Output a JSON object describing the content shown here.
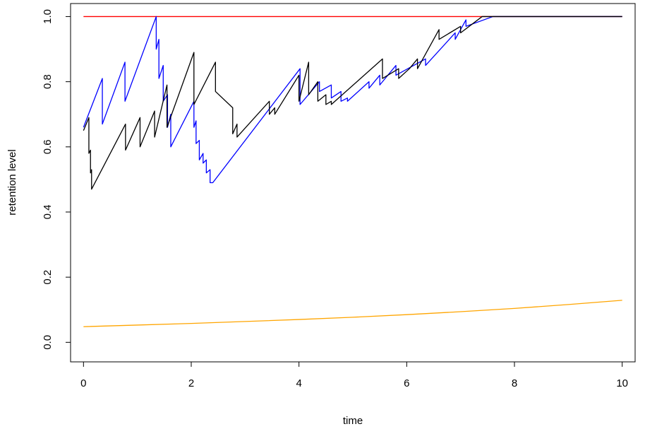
{
  "chart_data": {
    "type": "line",
    "title": "",
    "xlabel": "time",
    "ylabel": "retention level",
    "xlim": [
      -0.24,
      10.24
    ],
    "ylim": [
      -0.06,
      1.04
    ],
    "xticks": [
      0,
      2,
      4,
      6,
      8,
      10
    ],
    "yticks": [
      0.0,
      0.2,
      0.4,
      0.6,
      0.8,
      1.0
    ],
    "xtick_labels": [
      "0",
      "2",
      "4",
      "6",
      "8",
      "10"
    ],
    "ytick_labels": [
      "0.0",
      "0.2",
      "0.4",
      "0.6",
      "0.8",
      "1.0"
    ],
    "grid": false,
    "legend": "none",
    "series": [
      {
        "color": "#ff0000",
        "x": [
          0,
          10
        ],
        "y": [
          1.0,
          1.0
        ]
      },
      {
        "color": "#ffa500",
        "x": [
          0,
          1,
          2,
          3,
          4,
          5,
          6,
          7,
          8,
          9,
          10
        ],
        "y": [
          0.048,
          0.053,
          0.058,
          0.064,
          0.07,
          0.077,
          0.085,
          0.094,
          0.104,
          0.116,
          0.129
        ]
      },
      {
        "color": "#0000ff",
        "x": [
          0.0,
          0.35,
          0.35,
          0.77,
          0.77,
          1.35,
          1.35,
          1.4,
          1.4,
          1.48,
          1.48,
          1.56,
          1.56,
          1.62,
          1.62,
          2.05,
          2.05,
          2.09,
          2.09,
          2.15,
          2.15,
          2.22,
          2.22,
          2.28,
          2.28,
          2.35,
          2.35,
          2.4,
          2.4,
          4.02,
          4.02,
          4.38,
          4.38,
          4.6,
          4.6,
          4.78,
          4.78,
          4.9,
          4.9,
          5.3,
          5.3,
          5.5,
          5.5,
          5.8,
          5.8,
          6.35,
          6.35,
          6.9,
          6.9,
          7.1,
          7.1,
          7.6,
          10.0
        ],
        "y": [
          0.66,
          0.81,
          0.67,
          0.86,
          0.74,
          1.0,
          0.9,
          0.93,
          0.81,
          0.85,
          0.74,
          0.76,
          0.66,
          0.7,
          0.6,
          0.74,
          0.66,
          0.68,
          0.61,
          0.62,
          0.56,
          0.58,
          0.55,
          0.56,
          0.52,
          0.53,
          0.49,
          0.49,
          0.49,
          0.84,
          0.73,
          0.8,
          0.77,
          0.79,
          0.75,
          0.77,
          0.74,
          0.75,
          0.74,
          0.8,
          0.78,
          0.82,
          0.79,
          0.85,
          0.82,
          0.87,
          0.85,
          0.95,
          0.93,
          0.99,
          0.97,
          1.0,
          1.0
        ]
      },
      {
        "color": "#000000",
        "x": [
          0.0,
          0.1,
          0.1,
          0.13,
          0.13,
          0.15,
          0.15,
          0.78,
          0.78,
          1.05,
          1.05,
          1.32,
          1.32,
          1.55,
          1.55,
          2.05,
          2.05,
          2.45,
          2.45,
          2.77,
          2.77,
          2.85,
          2.85,
          3.45,
          3.45,
          3.55,
          3.55,
          4.0,
          4.0,
          4.18,
          4.18,
          4.35,
          4.35,
          4.5,
          4.5,
          4.6,
          4.6,
          5.55,
          5.55,
          5.85,
          5.85,
          6.05,
          6.05,
          6.2,
          6.2,
          6.6,
          6.6,
          7.0,
          7.0,
          7.4,
          10.0
        ],
        "y": [
          0.65,
          0.69,
          0.58,
          0.59,
          0.52,
          0.53,
          0.47,
          0.67,
          0.59,
          0.69,
          0.6,
          0.71,
          0.63,
          0.79,
          0.66,
          0.89,
          0.73,
          0.86,
          0.77,
          0.72,
          0.64,
          0.67,
          0.63,
          0.74,
          0.7,
          0.72,
          0.7,
          0.82,
          0.74,
          0.86,
          0.76,
          0.8,
          0.74,
          0.76,
          0.73,
          0.74,
          0.73,
          0.87,
          0.81,
          0.84,
          0.81,
          0.84,
          0.84,
          0.87,
          0.84,
          0.96,
          0.93,
          0.97,
          0.95,
          1.0,
          1.0
        ]
      }
    ]
  }
}
